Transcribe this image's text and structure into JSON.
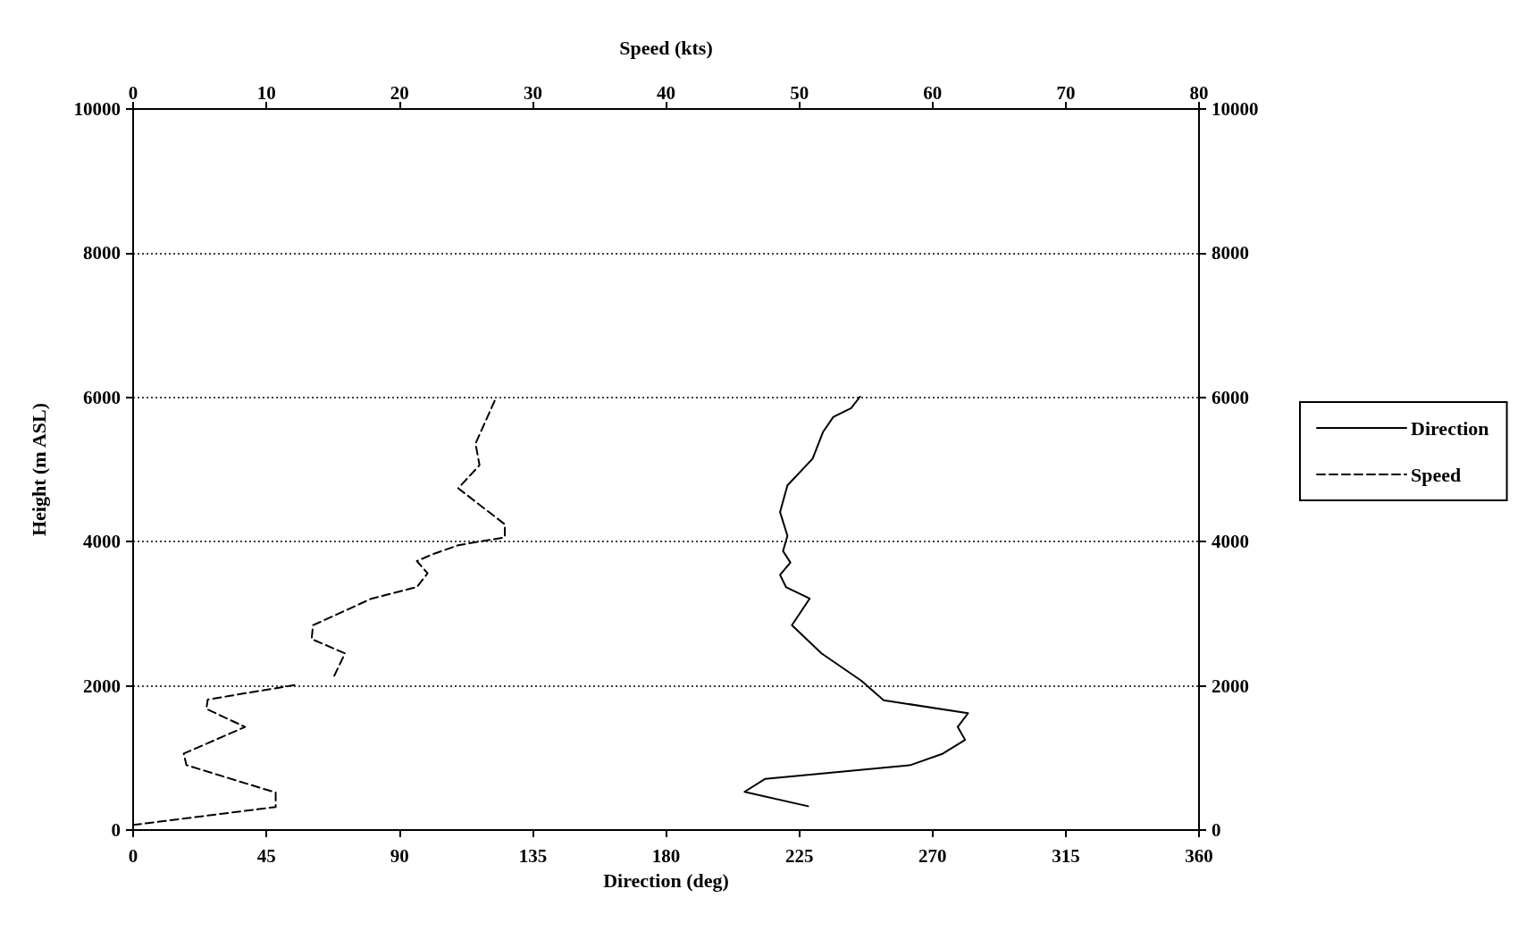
{
  "chart_data": {
    "type": "line",
    "xlabel": "Direction (deg)",
    "x2label": "Speed (kts)",
    "ylabel": "Height (m ASL)",
    "xlim": [
      0,
      360
    ],
    "xticks": [
      0,
      45,
      90,
      135,
      180,
      225,
      270,
      315,
      360
    ],
    "x2lim": [
      0,
      80
    ],
    "x2ticks": [
      0,
      10,
      20,
      30,
      40,
      50,
      60,
      70,
      80
    ],
    "ylim": [
      0,
      10000
    ],
    "yticks": [
      0,
      2000,
      4000,
      6000,
      8000,
      10000
    ],
    "y2lim": [
      0,
      10000
    ],
    "y2ticks": [
      0,
      2000,
      4000,
      6000,
      8000,
      10000
    ],
    "grid": "y",
    "legend": "right",
    "marker": "none",
    "series": [
      {
        "name": "Direction",
        "color": "#000000",
        "line_style": "solid",
        "x": [
          228,
          206.5,
          213.5,
          262.5,
          273.5,
          281,
          278.5,
          282,
          253.5,
          251.5,
          246,
          232.5,
          222.5,
          228.5,
          220.5,
          218.5,
          222,
          219.5,
          221,
          218.5,
          221,
          229.5,
          233,
          236.5,
          242.5,
          245.5
        ],
        "values": [
          330,
          530,
          710,
          900,
          1060,
          1250,
          1430,
          1620,
          1800,
          1870,
          2070,
          2450,
          2840,
          3210,
          3370,
          3540,
          3710,
          3870,
          4080,
          4410,
          4780,
          5150,
          5520,
          5730,
          5850,
          6010
        ]
      },
      {
        "name": "Speed",
        "color": "#000000",
        "line_style": "dashed",
        "axis": "x2",
        "x": [
          0,
          10.7,
          10.7,
          4,
          3.8,
          8.4,
          5.5,
          5.6,
          12.1,
          null,
          15.1,
          15.9,
          13.4,
          13.5,
          17.9,
          21.3,
          22.1,
          21.3,
          22.4,
          24.4,
          27.9,
          27.9,
          24.4,
          26,
          25.7,
          27.2
        ],
        "values": [
          70,
          320,
          520,
          900,
          1060,
          1430,
          1680,
          1810,
          2010,
          null,
          2140,
          2450,
          2650,
          2840,
          3210,
          3370,
          3560,
          3730,
          3820,
          3950,
          4060,
          4240,
          4740,
          5060,
          5360,
          5980
        ]
      }
    ]
  }
}
